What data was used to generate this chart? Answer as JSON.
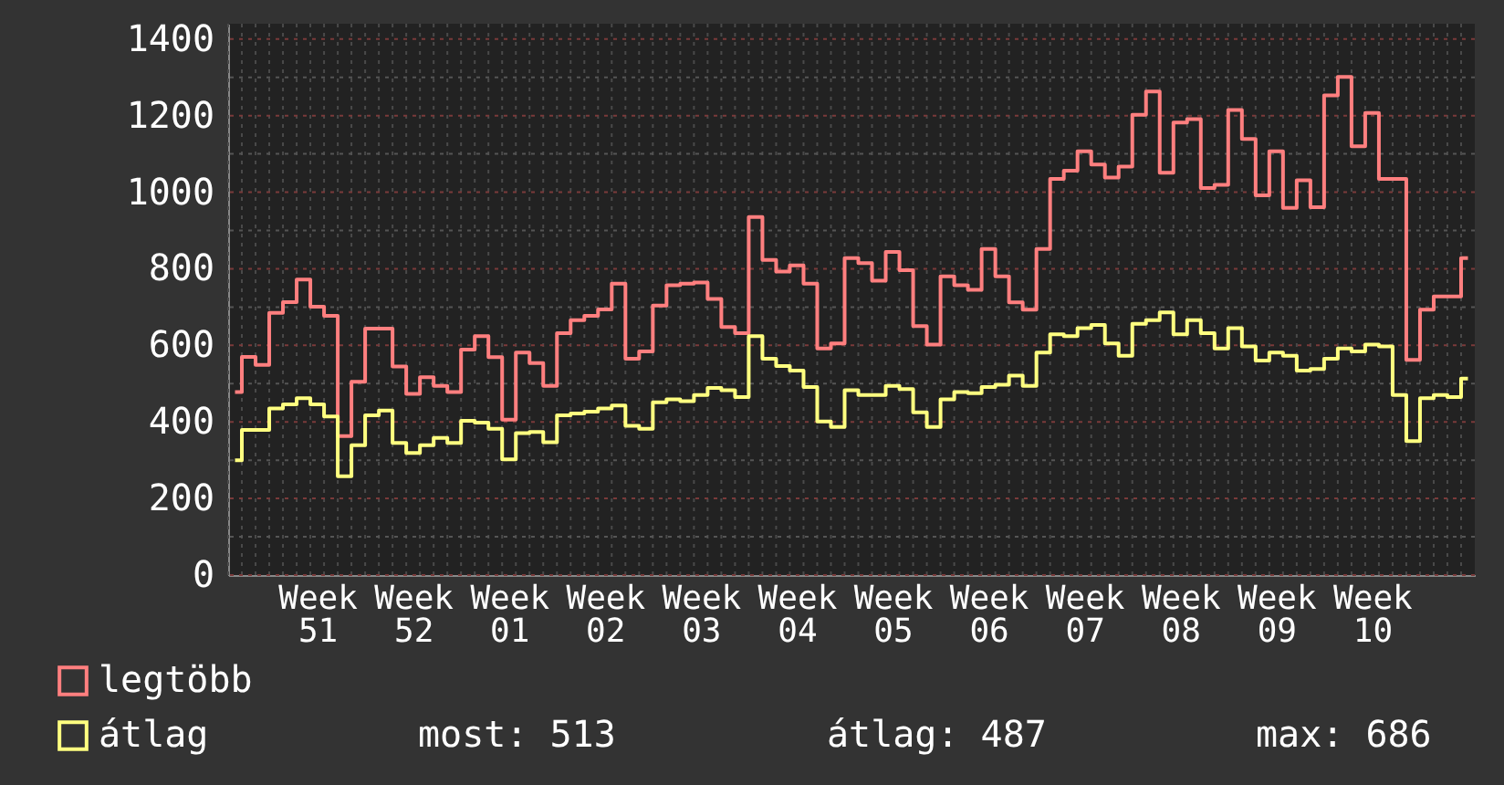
{
  "chart_data": {
    "type": "step",
    "categories": [
      null,
      null,
      null,
      null,
      null,
      null,
      "Week 51",
      null,
      null,
      null,
      null,
      null,
      null,
      "Week 52",
      null,
      null,
      null,
      null,
      null,
      null,
      "Week 01",
      null,
      null,
      null,
      null,
      null,
      null,
      "Week 02",
      null,
      null,
      null,
      null,
      null,
      null,
      "Week 03",
      null,
      null,
      null,
      null,
      null,
      null,
      "Week 04",
      null,
      null,
      null,
      null,
      null,
      null,
      "Week 05",
      null,
      null,
      null,
      null,
      null,
      null,
      "Week 06",
      null,
      null,
      null,
      null,
      null,
      null,
      "Week 07",
      null,
      null,
      null,
      null,
      null,
      null,
      "Week 08",
      null,
      null,
      null,
      null,
      null,
      null,
      "Week 09",
      null,
      null,
      null,
      null,
      null,
      null,
      "Week 10",
      null,
      null,
      null,
      null,
      null,
      null,
      null
    ],
    "series": [
      {
        "name": "legtöbb",
        "color": "#ff7f7f",
        "values": [
          478,
          570,
          549,
          685,
          713,
          772,
          701,
          677,
          363,
          505,
          644,
          644,
          545,
          473,
          517,
          494,
          478,
          589,
          624,
          569,
          406,
          581,
          554,
          494,
          632,
          666,
          677,
          694,
          761,
          565,
          584,
          704,
          757,
          761,
          764,
          721,
          648,
          632,
          935,
          823,
          793,
          809,
          761,
          592,
          605,
          828,
          815,
          769,
          844,
          796,
          650,
          602,
          780,
          757,
          745,
          852,
          780,
          712,
          693,
          852,
          1035,
          1056,
          1107,
          1072,
          1038,
          1067,
          1202,
          1263,
          1051,
          1182,
          1191,
          1011,
          1019,
          1215,
          1139,
          992,
          1107,
          959,
          1031,
          961,
          1253,
          1301,
          1120,
          1207,
          1035,
          1035,
          562,
          693,
          728,
          728,
          828
        ]
      },
      {
        "name": "átlag",
        "color": "#ffff80",
        "values": [
          300,
          379,
          379,
          435,
          446,
          462,
          446,
          414,
          258,
          339,
          417,
          430,
          345,
          319,
          339,
          358,
          345,
          403,
          398,
          382,
          302,
          371,
          374,
          347,
          417,
          422,
          427,
          435,
          443,
          390,
          382,
          451,
          459,
          454,
          470,
          489,
          483,
          465,
          624,
          565,
          546,
          534,
          491,
          401,
          387,
          483,
          470,
          470,
          494,
          486,
          425,
          387,
          459,
          478,
          475,
          491,
          497,
          521,
          494,
          581,
          629,
          624,
          645,
          653,
          605,
          573,
          656,
          666,
          686,
          629,
          666,
          632,
          592,
          645,
          597,
          560,
          581,
          573,
          534,
          538,
          565,
          592,
          584,
          602,
          597,
          470,
          350,
          462,
          470,
          465,
          513
        ]
      }
    ],
    "ylim": [
      0,
      1440
    ],
    "yticks": [
      0,
      {
        "value": 100,
        "label": null
      },
      200,
      {
        "value": 300,
        "label": null
      },
      400,
      {
        "value": 500,
        "label": null
      },
      600,
      {
        "value": 700,
        "label": null
      },
      800,
      {
        "value": 900,
        "label": null
      },
      1000,
      {
        "value": 1100,
        "label": null
      },
      1200,
      {
        "value": 1300,
        "label": null
      },
      1400
    ],
    "annotations": [
      "most: 513",
      "átlag: 487",
      "max: 686"
    ],
    "grid": true,
    "legend": "bottom",
    "line_style": "solid"
  }
}
